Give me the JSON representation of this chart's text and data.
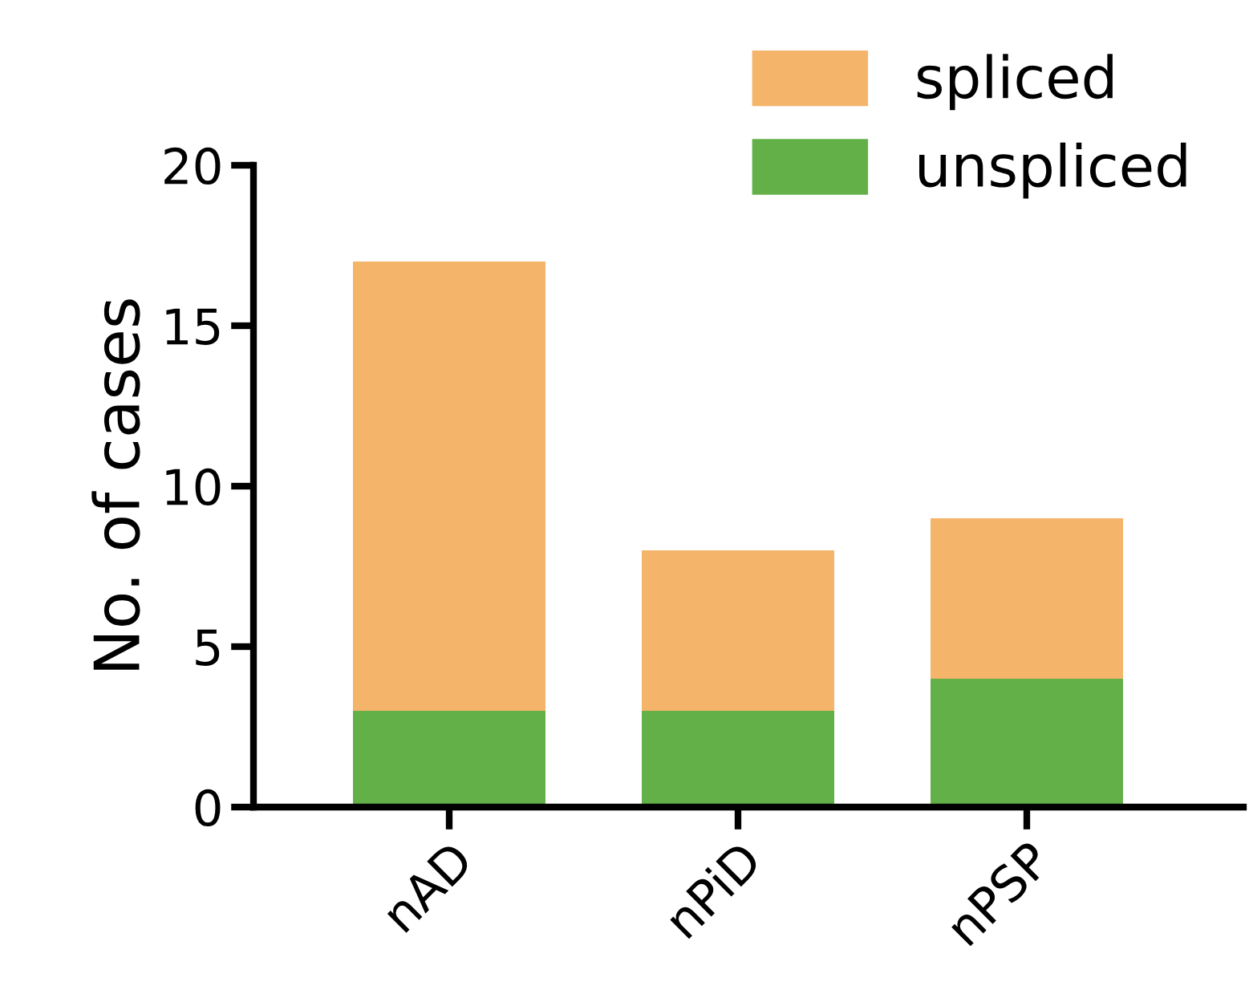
{
  "chart_data": {
    "type": "bar",
    "stacked": true,
    "ylabel": "No. of cases",
    "categories": [
      "nAD",
      "nPiD",
      "nPSP"
    ],
    "series": [
      {
        "name": "unspliced",
        "color": "#62b047",
        "values": [
          3,
          3,
          4
        ]
      },
      {
        "name": "spliced",
        "color": "#f4b46a",
        "values": [
          14,
          5,
          5
        ]
      }
    ],
    "ylim": [
      0,
      20
    ],
    "yticks": [
      0,
      5,
      10,
      15,
      20
    ],
    "grid": false,
    "legend": "top right"
  }
}
